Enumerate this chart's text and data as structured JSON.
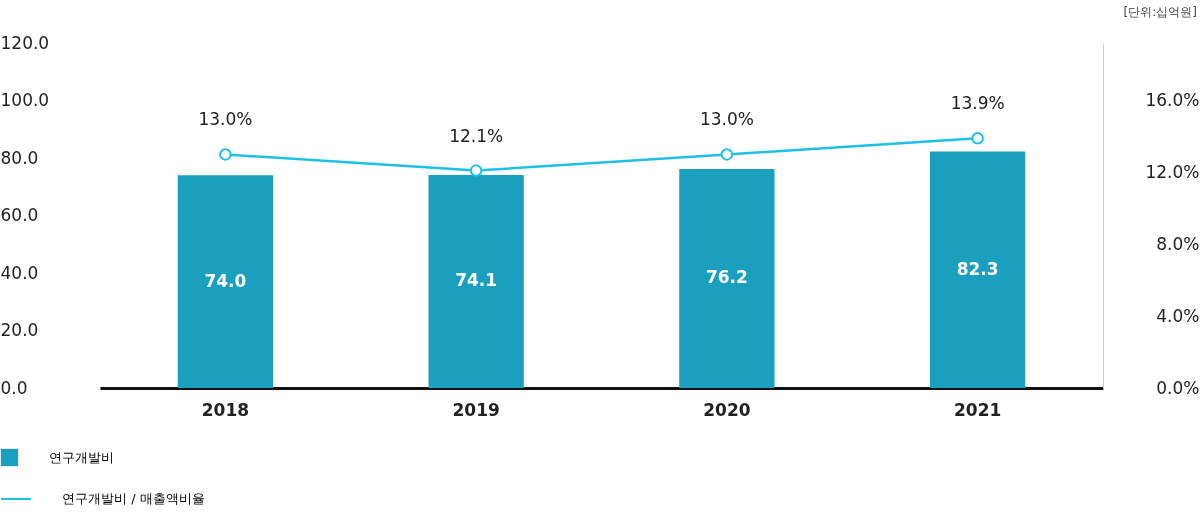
{
  "chart_data": {
    "type": "bar",
    "categories": [
      "2018",
      "2019",
      "2020",
      "2021"
    ],
    "series": [
      {
        "name": "연구개발비",
        "color": "#1a9fbf",
        "values": [
          74.0,
          74.1,
          76.2,
          82.3
        ],
        "value_labels": [
          "74.0",
          "74.1",
          "76.2",
          "82.3"
        ]
      },
      {
        "name": "연구개발비 / 매출액비율",
        "type": "line",
        "axis": "y2",
        "color": "#1ec0e6",
        "values": [
          13.0,
          12.1,
          13.0,
          13.9
        ],
        "value_labels": [
          "13.0%",
          "12.1%",
          "13.0%",
          "13.9%"
        ]
      }
    ],
    "ylim": [
      0,
      120
    ],
    "yticks": [
      {
        "value": 0,
        "label": "0.0"
      },
      {
        "value": 20,
        "label": "20.0"
      },
      {
        "value": 40,
        "label": "40.0"
      },
      {
        "value": 60,
        "label": "60.0"
      },
      {
        "value": 80,
        "label": "80.0"
      },
      {
        "value": 100,
        "label": "100.0"
      },
      {
        "value": 120,
        "label": "120.0"
      }
    ],
    "y2lim": [
      0,
      19.2
    ],
    "y2ticks": [
      {
        "value": 0,
        "label": "0.0%"
      },
      {
        "value": 4,
        "label": "4.0%"
      },
      {
        "value": 8,
        "label": "8.0%"
      },
      {
        "value": 12,
        "label": "12.0%"
      },
      {
        "value": 16,
        "label": "16.0%"
      }
    ],
    "grid": false,
    "legend": "bottom left",
    "marker": "circle",
    "line_style": "solid",
    "annotations": [
      "[단위:십억원]"
    ]
  }
}
